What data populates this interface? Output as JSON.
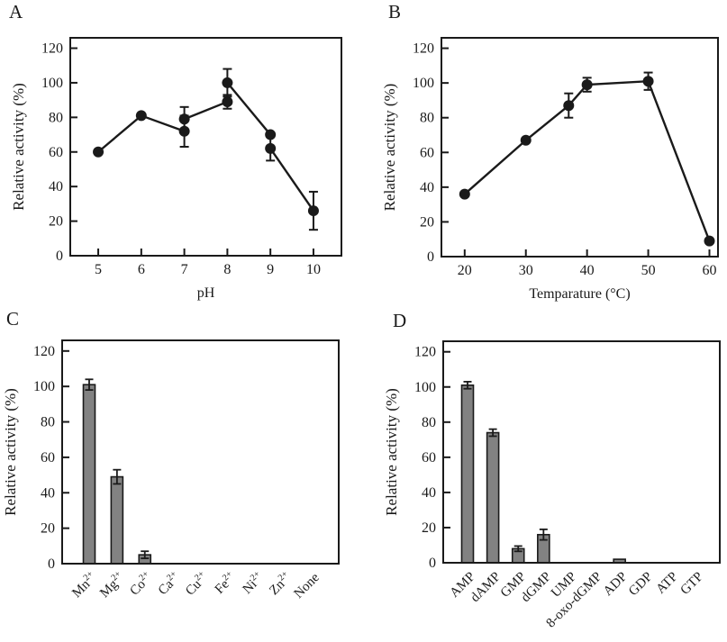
{
  "figure": {
    "background": "#ffffff",
    "ink": "#1a1a1a",
    "bar_fill": "#828282"
  },
  "chart_data": [
    {
      "panel": "A",
      "type": "line",
      "title": "",
      "xlabel": "pH",
      "ylabel": "Relative activity (%)",
      "xlim": [
        4.35,
        10.65
      ],
      "ylim": [
        0,
        126
      ],
      "xticks": [
        5,
        6,
        7,
        8,
        9,
        10
      ],
      "yticks": [
        0,
        20,
        40,
        60,
        80,
        100,
        120
      ],
      "grid": false,
      "legend": false,
      "marker": "filled-circle",
      "points": [
        {
          "x": 5,
          "y": 60,
          "err": 0
        },
        {
          "x": 6,
          "y": 81,
          "err": 0
        },
        {
          "x": 7,
          "y": 72,
          "err": 9
        },
        {
          "x": 7,
          "y": 79,
          "err": 7
        },
        {
          "x": 8,
          "y": 89,
          "err": 4
        },
        {
          "x": 8,
          "y": 100,
          "err": 8
        },
        {
          "x": 9,
          "y": 62,
          "err": 7
        },
        {
          "x": 9,
          "y": 70,
          "err": 0
        },
        {
          "x": 10,
          "y": 26,
          "err": 11
        }
      ],
      "segments": [
        [
          [
            5,
            60
          ],
          [
            6,
            81
          ],
          [
            7,
            72
          ]
        ],
        [
          [
            7,
            79
          ],
          [
            8,
            89
          ]
        ],
        [
          [
            8,
            100
          ],
          [
            9,
            70
          ]
        ],
        [
          [
            9,
            62
          ],
          [
            10,
            26
          ]
        ]
      ]
    },
    {
      "panel": "B",
      "type": "line",
      "title": "",
      "xlabel": "Temparature (°C)",
      "ylabel": "Relative activity (%)",
      "xlim": [
        16.2,
        61.4
      ],
      "ylim": [
        0,
        126
      ],
      "xticks": [
        20,
        30,
        40,
        50,
        60
      ],
      "yticks": [
        0,
        20,
        40,
        60,
        80,
        100,
        120
      ],
      "grid": false,
      "legend": false,
      "marker": "filled-circle",
      "points": [
        {
          "x": 20,
          "y": 36,
          "err": 0
        },
        {
          "x": 30,
          "y": 67,
          "err": 0
        },
        {
          "x": 37,
          "y": 87,
          "err": 7
        },
        {
          "x": 40,
          "y": 99,
          "err": 4
        },
        {
          "x": 50,
          "y": 101,
          "err": 5
        },
        {
          "x": 60,
          "y": 9,
          "err": 0
        }
      ],
      "segments": [
        [
          [
            20,
            36
          ],
          [
            30,
            67
          ],
          [
            37,
            87
          ],
          [
            40,
            99
          ],
          [
            50,
            101
          ],
          [
            60,
            9
          ]
        ]
      ]
    },
    {
      "panel": "C",
      "type": "bar",
      "title": "",
      "xlabel": "",
      "ylabel": "Relative activity (%)",
      "ylim": [
        0,
        126
      ],
      "yticks": [
        0,
        20,
        40,
        60,
        80,
        100,
        120
      ],
      "grid": false,
      "legend": false,
      "categories": [
        "Mn^2+",
        "Mg^2+",
        "Co^2+",
        "Ca^2+",
        "Cu^2+",
        "Fe^2+",
        "Ni^2+",
        "Zn^2+",
        "None"
      ],
      "values": [
        101,
        49,
        5,
        0,
        0,
        0,
        0,
        0,
        0
      ],
      "errors": [
        3,
        4,
        2,
        0,
        0,
        0,
        0,
        0,
        0
      ]
    },
    {
      "panel": "D",
      "type": "bar",
      "title": "",
      "xlabel": "",
      "ylabel": "Relative activity (%)",
      "ylim": [
        0,
        126
      ],
      "yticks": [
        0,
        20,
        40,
        60,
        80,
        100,
        120
      ],
      "grid": false,
      "legend": false,
      "categories": [
        "AMP",
        "dAMP",
        "GMP",
        "dGMP",
        "UMP",
        "8-oxo-dGMP",
        "ADP",
        "GDP",
        "ATP",
        "GTP"
      ],
      "values": [
        101,
        74,
        8,
        16,
        0,
        0,
        2,
        0,
        0,
        0
      ],
      "errors": [
        2,
        2,
        1.5,
        3,
        0,
        0,
        0,
        0,
        0,
        0
      ]
    }
  ]
}
